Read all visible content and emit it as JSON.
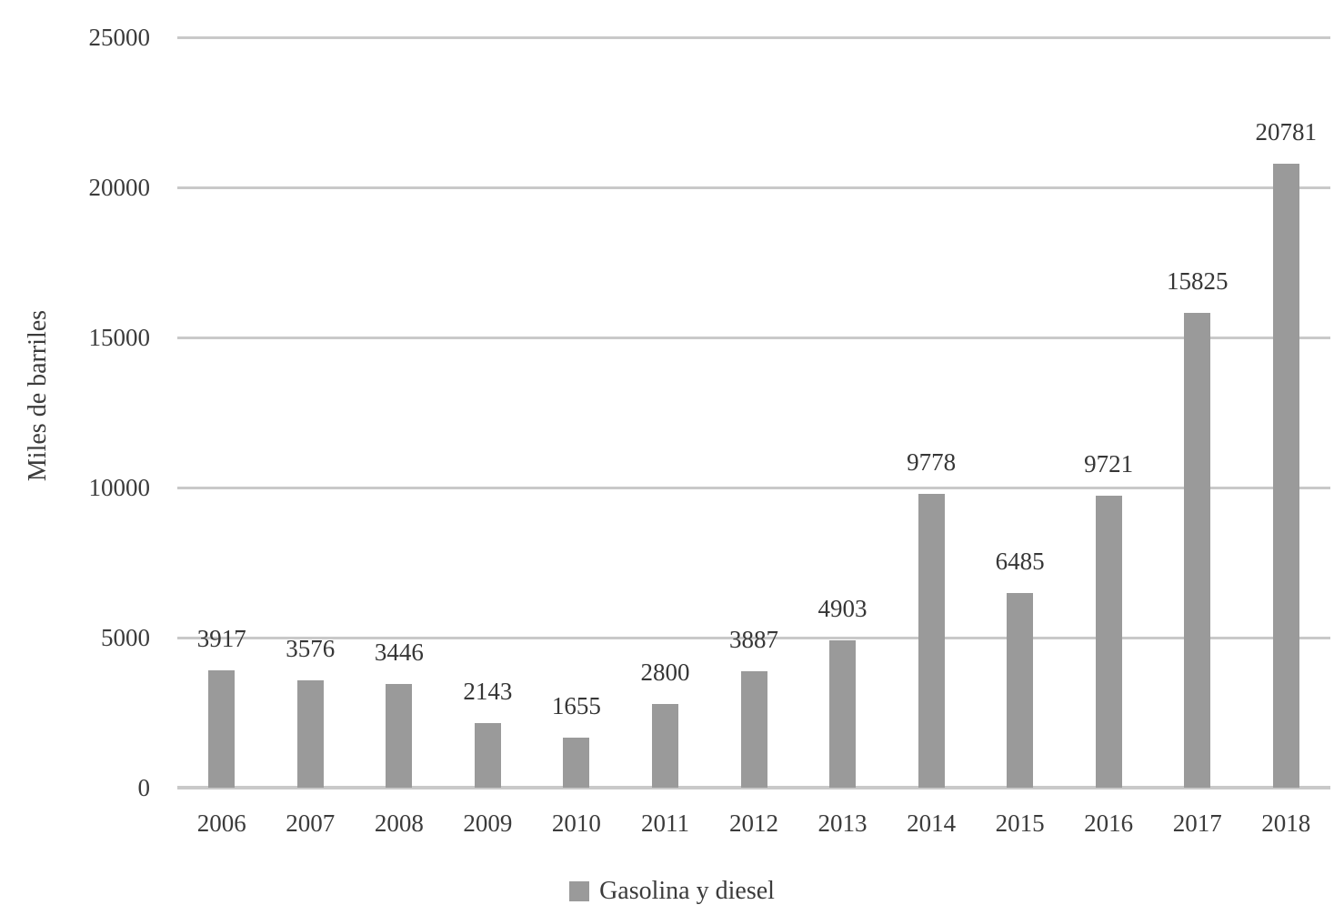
{
  "chart_data": {
    "type": "bar",
    "title": "",
    "categories": [
      "2006",
      "2007",
      "2008",
      "2009",
      "2010",
      "2011",
      "2012",
      "2013",
      "2014",
      "2015",
      "2016",
      "2017",
      "2018"
    ],
    "series": [
      {
        "name": "Gasolina y diesel",
        "values": [
          3917,
          3576,
          3446,
          2143,
          1655,
          2800,
          3887,
          4903,
          9778,
          6485,
          9721,
          15825,
          20781
        ]
      }
    ],
    "data_labels_shown": true,
    "xlabel": "",
    "ylabel": "Miles de barriles",
    "ylim": [
      0,
      25000
    ],
    "yticks": [
      0,
      5000,
      10000,
      15000,
      20000,
      25000
    ],
    "grid": "horizontal",
    "legend_position": "bottom-center",
    "colors": {
      "bar": "#9a9a9a",
      "gridline": "#c9c9c9",
      "text": "#3b3b3b",
      "background": "#ffffff"
    }
  },
  "y_axis": {
    "title": "Miles de barriles"
  },
  "legend": {
    "label": "Gasolina y diesel"
  }
}
